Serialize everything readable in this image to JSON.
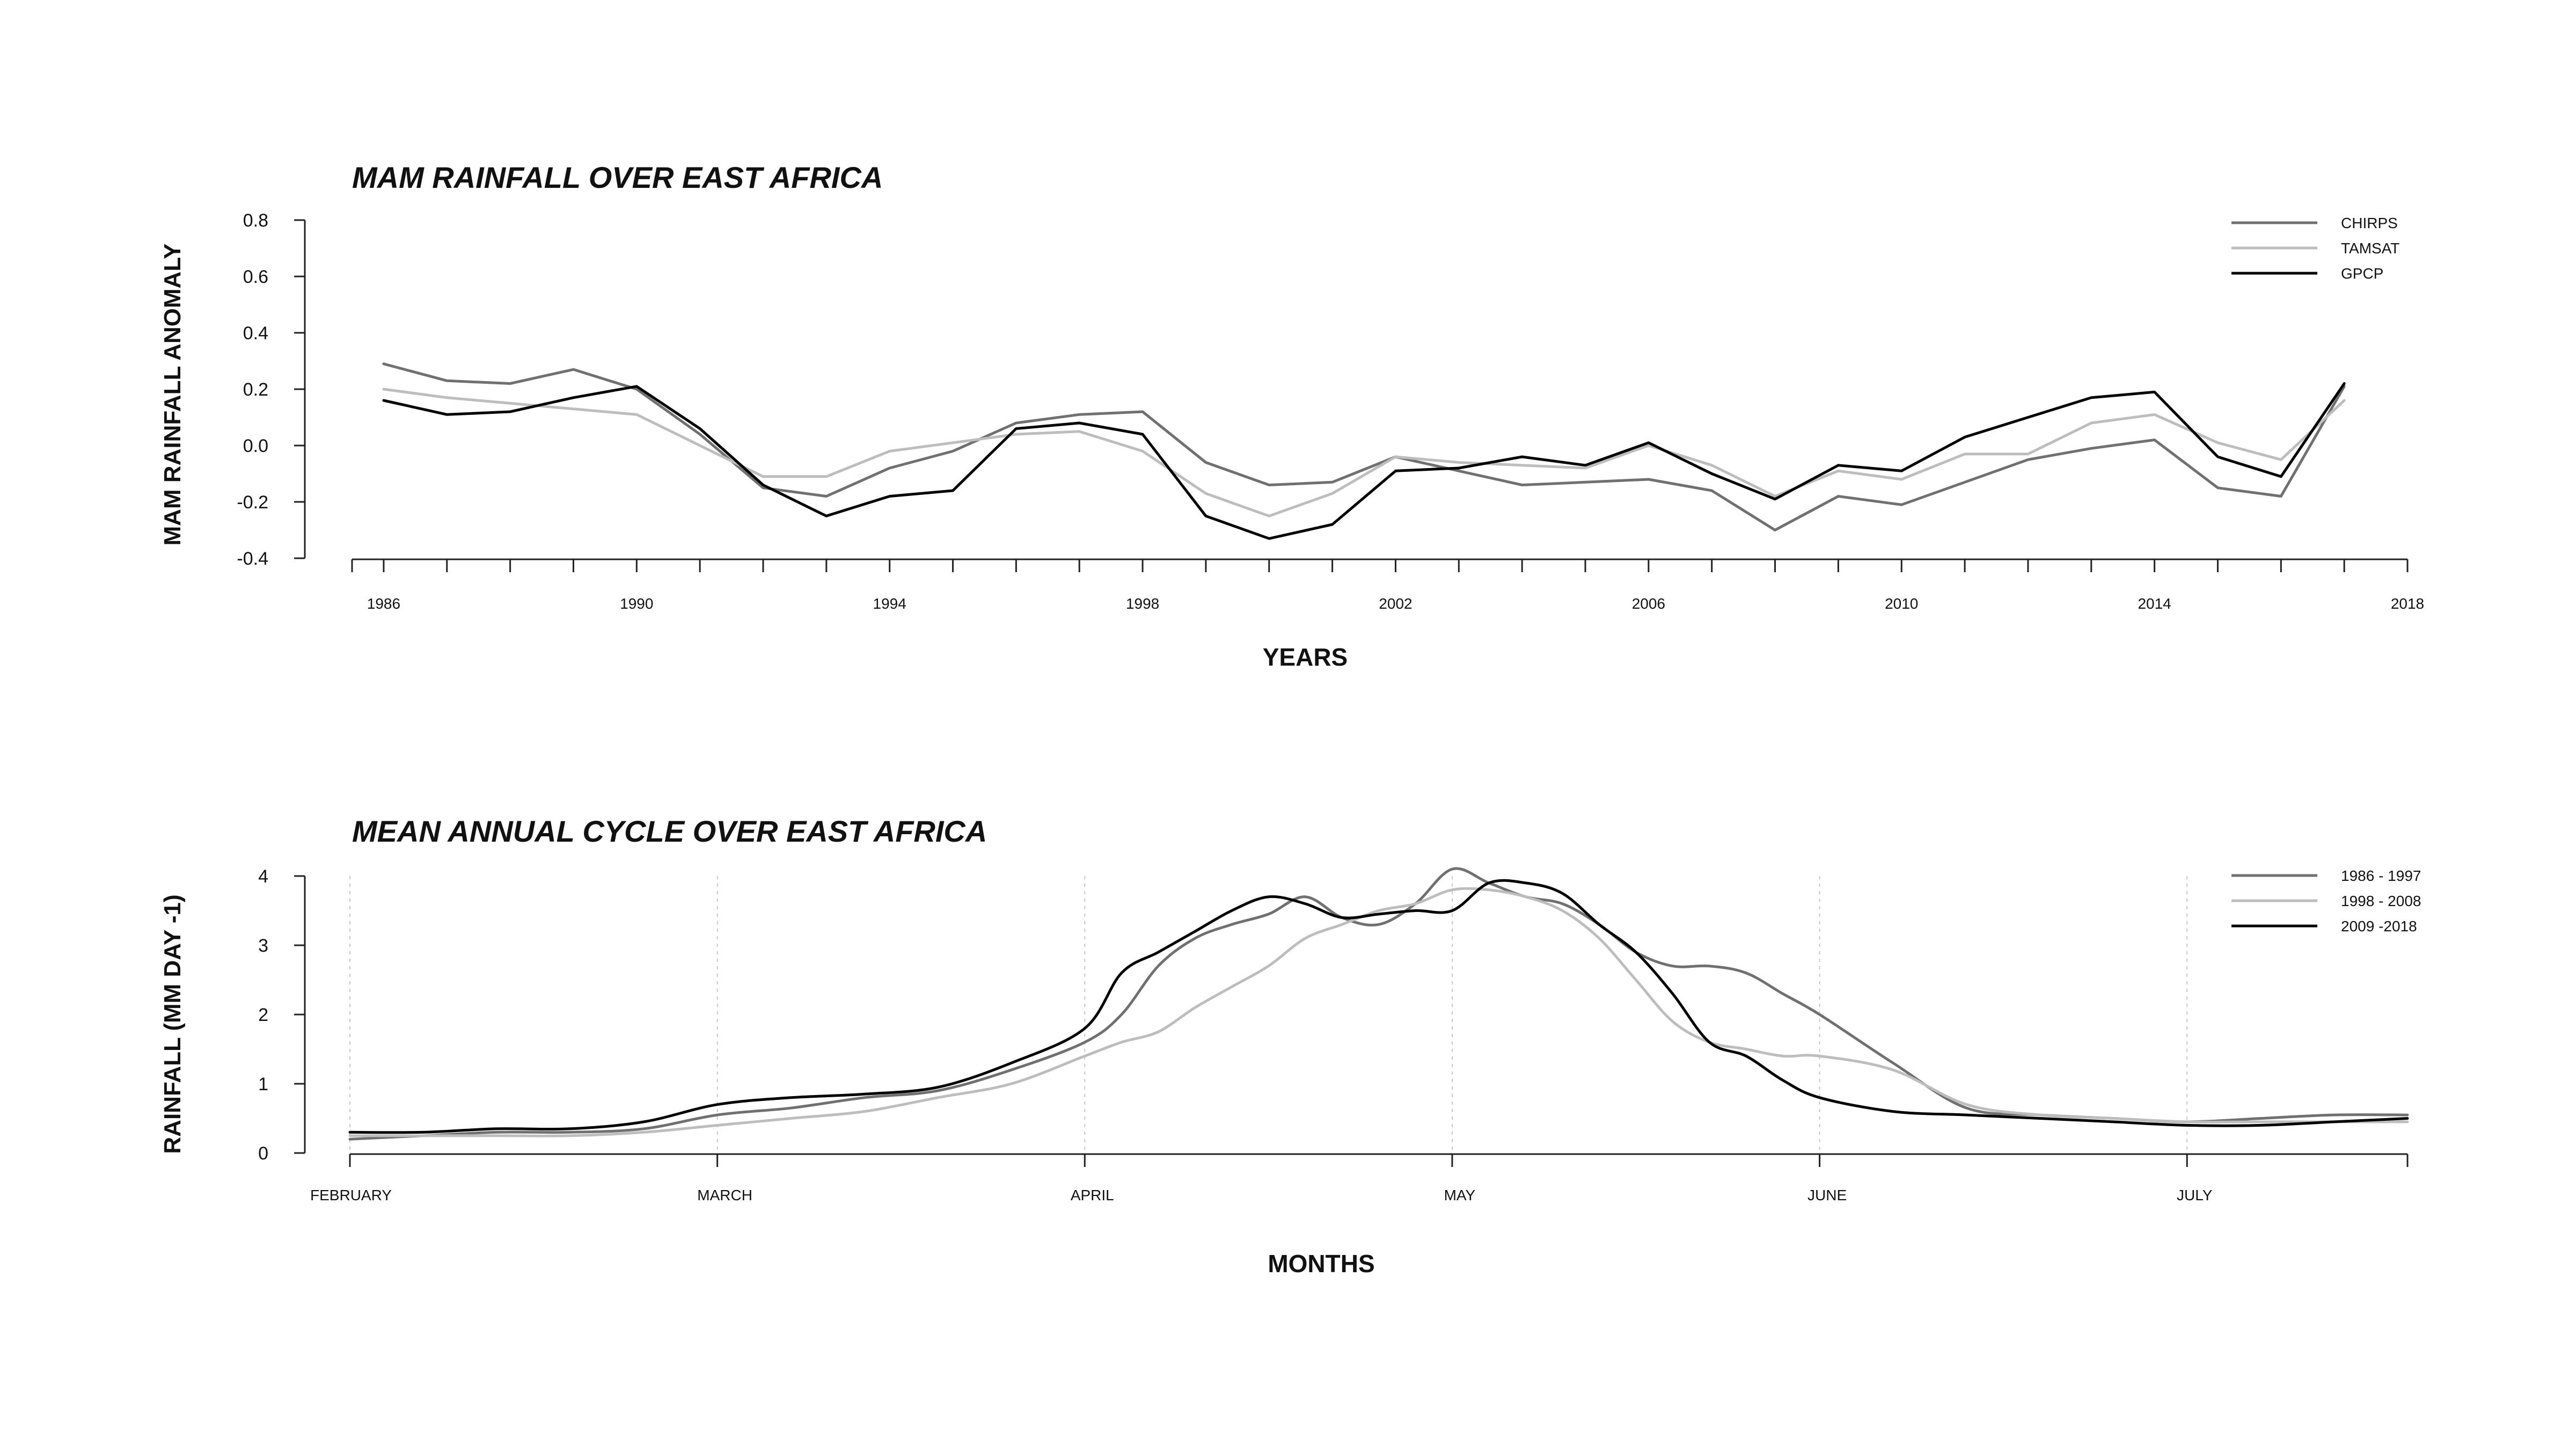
{
  "chart_data": [
    {
      "type": "line",
      "title": "MAM RAINFALL OVER EAST AFRICA",
      "xlabel": "YEARS",
      "ylabel": "MAM RAINFALL ANOMALY",
      "xlim": [
        1985.5,
        2018
      ],
      "ylim": [
        -0.4,
        0.8
      ],
      "yticks": [
        -0.4,
        -0.2,
        0.0,
        0.2,
        0.4,
        0.6,
        0.8
      ],
      "ytick_labels": [
        "-0.4",
        "-0.2",
        "0.0",
        "0.2",
        "0.4",
        "0.6",
        "0.8"
      ],
      "xtick_labels": [
        "1986",
        "1990",
        "1994",
        "1998",
        "2002",
        "2006",
        "2010",
        "2014",
        "2018"
      ],
      "grid": false,
      "legend_position": "top-right",
      "x": [
        1986,
        1987,
        1988,
        1989,
        1990,
        1991,
        1992,
        1993,
        1994,
        1995,
        1996,
        1997,
        1998,
        1999,
        2000,
        2001,
        2002,
        2003,
        2004,
        2005,
        2006,
        2007,
        2008,
        2009,
        2010,
        2011,
        2012,
        2013,
        2014,
        2015,
        2016,
        2017
      ],
      "series": [
        {
          "name": "CHIRPS",
          "color": "#707070",
          "values": [
            0.29,
            0.23,
            0.22,
            0.27,
            0.2,
            0.04,
            -0.15,
            -0.18,
            -0.08,
            -0.02,
            0.08,
            0.11,
            0.12,
            -0.06,
            -0.14,
            -0.13,
            -0.04,
            -0.09,
            -0.14,
            -0.13,
            -0.12,
            -0.16,
            -0.3,
            -0.18,
            -0.21,
            -0.13,
            -0.05,
            -0.01,
            0.02,
            -0.15,
            -0.18,
            0.21
          ]
        },
        {
          "name": "TAMSAT",
          "color": "#bdbdbd",
          "values": [
            0.2,
            0.17,
            0.15,
            0.13,
            0.11,
            0.0,
            -0.11,
            -0.11,
            -0.02,
            0.01,
            0.04,
            0.05,
            -0.02,
            -0.17,
            -0.25,
            -0.17,
            -0.04,
            -0.06,
            -0.07,
            -0.08,
            0.0,
            -0.07,
            -0.18,
            -0.09,
            -0.12,
            -0.03,
            -0.03,
            0.08,
            0.11,
            0.01,
            -0.05,
            0.16
          ]
        },
        {
          "name": "GPCP",
          "color": "#000000",
          "values": [
            0.16,
            0.11,
            0.12,
            0.17,
            0.21,
            0.06,
            -0.14,
            -0.25,
            -0.18,
            -0.16,
            0.06,
            0.08,
            0.04,
            -0.25,
            -0.33,
            -0.28,
            -0.09,
            -0.08,
            -0.04,
            -0.07,
            0.01,
            -0.1,
            -0.19,
            -0.07,
            -0.09,
            0.03,
            0.1,
            0.17,
            0.19,
            -0.04,
            -0.11,
            0.22
          ]
        }
      ]
    },
    {
      "type": "line",
      "title": "MEAN ANNUAL CYCLE OVER EAST AFRICA",
      "xlabel": "MONTHS",
      "ylabel": "RAINFALL (MM DAY -1)",
      "xlim": [
        1,
        6.6
      ],
      "ylim": [
        0,
        4
      ],
      "yticks": [
        0,
        1,
        2,
        3,
        4
      ],
      "ytick_labels": [
        "0",
        "1",
        "2",
        "3",
        "4"
      ],
      "month_ticks": [
        1,
        2,
        3,
        4,
        5,
        6
      ],
      "xtick_labels": [
        "FEBRUARY",
        "MARCH",
        "APRIL",
        "MAY",
        "JUNE",
        "JULY"
      ],
      "grid": "vertical dotted at month starts",
      "legend_position": "top-right",
      "x": [
        1.0,
        1.2,
        1.4,
        1.6,
        1.8,
        2.0,
        2.2,
        2.4,
        2.6,
        2.8,
        3.0,
        3.1,
        3.2,
        3.3,
        3.4,
        3.5,
        3.6,
        3.7,
        3.8,
        3.9,
        4.0,
        4.1,
        4.2,
        4.3,
        4.4,
        4.5,
        4.6,
        4.7,
        4.8,
        4.9,
        5.0,
        5.2,
        5.4,
        5.6,
        5.8,
        6.0,
        6.2,
        6.4,
        6.6
      ],
      "series": [
        {
          "name": "1986 - 1997",
          "color": "#707070",
          "values": [
            0.2,
            0.25,
            0.3,
            0.3,
            0.35,
            0.55,
            0.65,
            0.8,
            0.9,
            1.2,
            1.6,
            2.0,
            2.7,
            3.1,
            3.3,
            3.45,
            3.7,
            3.4,
            3.3,
            3.6,
            4.1,
            3.9,
            3.7,
            3.6,
            3.3,
            2.9,
            2.7,
            2.7,
            2.6,
            2.3,
            2.0,
            1.3,
            0.65,
            0.55,
            0.5,
            0.45,
            0.5,
            0.55,
            0.55
          ]
        },
        {
          "name": "1998 - 2008",
          "color": "#bdbdbd",
          "values": [
            0.25,
            0.25,
            0.25,
            0.25,
            0.3,
            0.4,
            0.5,
            0.6,
            0.8,
            1.0,
            1.4,
            1.6,
            1.75,
            2.1,
            2.4,
            2.7,
            3.1,
            3.3,
            3.5,
            3.6,
            3.8,
            3.8,
            3.7,
            3.5,
            3.1,
            2.5,
            1.9,
            1.6,
            1.5,
            1.4,
            1.4,
            1.2,
            0.7,
            0.55,
            0.5,
            0.45,
            0.45,
            0.45,
            0.45
          ]
        },
        {
          "name": "2009 -2018",
          "color": "#000000",
          "values": [
            0.3,
            0.3,
            0.35,
            0.35,
            0.45,
            0.7,
            0.8,
            0.85,
            0.95,
            1.3,
            1.8,
            2.6,
            2.9,
            3.2,
            3.5,
            3.7,
            3.6,
            3.4,
            3.45,
            3.5,
            3.5,
            3.9,
            3.9,
            3.75,
            3.3,
            2.9,
            2.3,
            1.6,
            1.4,
            1.05,
            0.8,
            0.6,
            0.55,
            0.5,
            0.45,
            0.4,
            0.4,
            0.45,
            0.5
          ]
        }
      ]
    }
  ]
}
